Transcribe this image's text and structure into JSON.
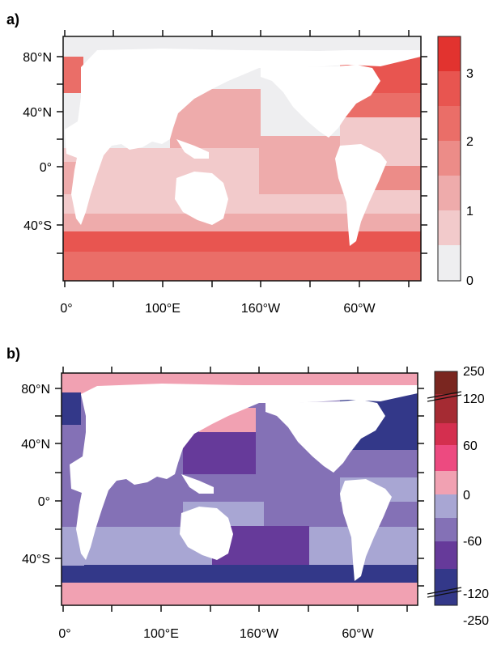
{
  "panel_a": {
    "label": "a)",
    "lat_ticks": [
      "80°N",
      "40°N",
      "0°",
      "40°S"
    ],
    "lon_ticks": [
      "0°",
      "100°E",
      "160°W",
      "60°W"
    ],
    "colorbar_labels": [
      "3",
      "2",
      "1",
      "0"
    ],
    "colorbar_colors": [
      "#e2332f",
      "#e85550",
      "#ea6e68",
      "#ec8c88",
      "#eeabab",
      "#f2cacb",
      "#eeeef0"
    ],
    "land_color": "#ffffff",
    "regions": [
      {
        "name": "arctic",
        "level": 0
      },
      {
        "name": "north-pacific-west",
        "level": 2
      },
      {
        "name": "north-pacific-east",
        "level": 0
      },
      {
        "name": "north-atlantic-high",
        "level": 6
      },
      {
        "name": "norwegian-sea",
        "level": 5
      },
      {
        "name": "north-atlantic-mid",
        "level": 4
      },
      {
        "name": "atlantic-tropics",
        "level": 1
      },
      {
        "name": "eastern-pacific",
        "level": 2
      },
      {
        "name": "indian-ocean",
        "level": 1
      },
      {
        "name": "southern-ocean",
        "level": 5
      },
      {
        "name": "southern-ocean-fringe",
        "level": 4
      }
    ]
  },
  "panel_b": {
    "label": "b)",
    "lat_ticks": [
      "80°N",
      "40°N",
      "0°",
      "40°S"
    ],
    "lon_ticks": [
      "0°",
      "100°E",
      "160°W",
      "60°W"
    ],
    "colorbar_labels": [
      "250",
      "120",
      "60",
      "0",
      "-60",
      "-120",
      "-250"
    ],
    "colorbar_colors": [
      "#7a2620",
      "#a52b33",
      "#d42f4f",
      "#ed4a80",
      "#f1a1b2",
      "#a8a6d3",
      "#8471b6",
      "#663a9a",
      "#333889"
    ],
    "land_color": "#ffffff",
    "regions": [
      {
        "name": "arctic",
        "level": 4
      },
      {
        "name": "north-atlantic-high",
        "level": 8
      },
      {
        "name": "north-pacific-west",
        "level": 7
      },
      {
        "name": "north-pacific-east",
        "level": 4
      },
      {
        "name": "north-atlantic-mid",
        "level": 6
      },
      {
        "name": "tropics",
        "level": 6
      },
      {
        "name": "equatorial-band",
        "level": 5
      },
      {
        "name": "south-pacific",
        "level": 7
      },
      {
        "name": "southern-ocean",
        "level": 8
      },
      {
        "name": "antarctic-fringe",
        "level": 4
      }
    ]
  }
}
